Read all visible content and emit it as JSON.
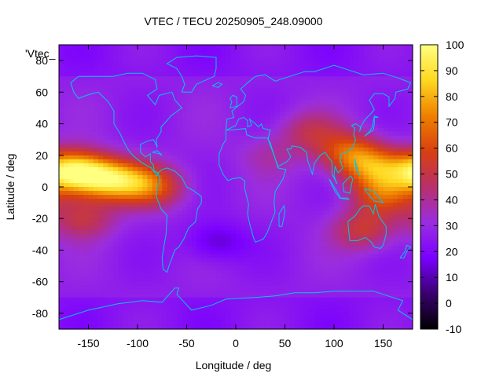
{
  "chart_data": {
    "type": "heatmap",
    "title": "VTEC / TECU 20250905_248.09000",
    "series_label": "'Vtec_",
    "xlabel": "Longitude / deg",
    "ylabel": "Latitude / deg",
    "xlim": [
      -180,
      180
    ],
    "ylim": [
      -90,
      90
    ],
    "x_ticks": [
      -150,
      -100,
      -50,
      0,
      50,
      100,
      150
    ],
    "y_ticks": [
      -80,
      -60,
      -40,
      -20,
      0,
      20,
      40,
      60,
      80
    ],
    "colorbar": {
      "range": [
        -10,
        100
      ],
      "ticks": [
        -10,
        0,
        10,
        20,
        30,
        40,
        50,
        60,
        70,
        80,
        90,
        100
      ],
      "palette": [
        "#000000",
        "#3a0070",
        "#7a00ff",
        "#9a2de0",
        "#b8306a",
        "#d84010",
        "#ee8000",
        "#ffd820",
        "#ffff80"
      ]
    },
    "grid_resolution_deg": [
      5,
      2.5
    ],
    "features": [
      {
        "lon": -170,
        "lat": 10,
        "value": 85
      },
      {
        "lon": -140,
        "lat": 6,
        "value": 74
      },
      {
        "lon": -110,
        "lat": 3,
        "value": 63
      },
      {
        "lon": -80,
        "lat": 0,
        "value": 52
      },
      {
        "lon": -155,
        "lat": -20,
        "value": 50
      },
      {
        "lon": 140,
        "lat": 12,
        "value": 64
      },
      {
        "lon": 115,
        "lat": 22,
        "value": 60
      },
      {
        "lon": 150,
        "lat": -5,
        "value": 58
      },
      {
        "lon": 130,
        "lat": -27,
        "value": 52
      },
      {
        "lon": 75,
        "lat": 35,
        "value": 45
      },
      {
        "lon": 35,
        "lat": 20,
        "value": 37
      },
      {
        "lon": -20,
        "lat": -35,
        "value": 12
      }
    ],
    "background_value": 27,
    "coastline_color": "#00c8e6",
    "grid": false
  }
}
